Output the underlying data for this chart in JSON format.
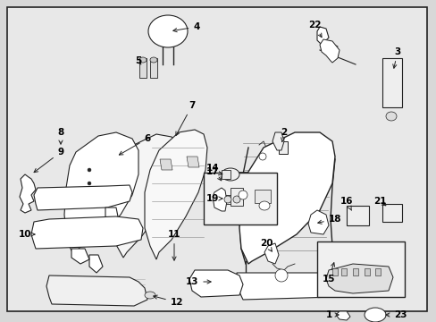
{
  "background_color": "#d8d8d8",
  "diagram_bg": "#e8e8e8",
  "border_color": "#222222",
  "text_color": "#000000",
  "figsize": [
    4.89,
    3.6
  ],
  "dpi": 100,
  "line_color": "#222222",
  "fill_color": "#ffffff",
  "fill_light": "#eeeeee"
}
